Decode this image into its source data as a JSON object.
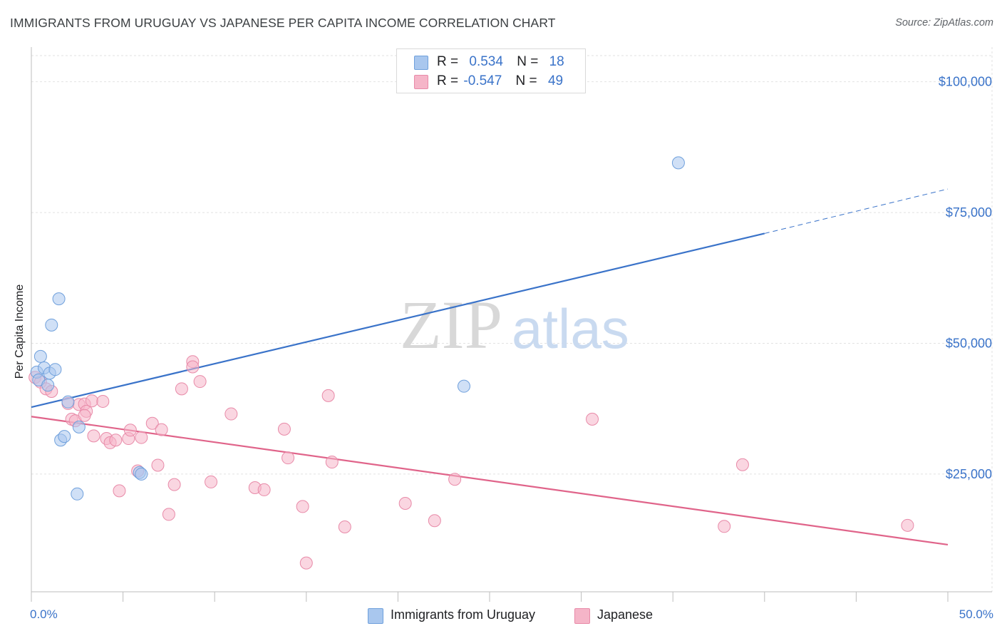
{
  "title": "IMMIGRANTS FROM URUGUAY VS JAPANESE PER CAPITA INCOME CORRELATION CHART",
  "source": "Source: ZipAtlas.com",
  "watermark": {
    "zip": "ZIP",
    "atlas": "atlas"
  },
  "legend": {
    "rows": [
      {
        "r_label": "R =",
        "r_value": "0.534",
        "n_label": "N =",
        "n_value": "18",
        "color": "#a9c7ee"
      },
      {
        "r_label": "R =",
        "r_value": "-0.547",
        "n_label": "N =",
        "n_value": "49",
        "color": "#f5b5c8"
      }
    ]
  },
  "bottom_legend": [
    {
      "label": "Immigrants from Uruguay",
      "color": "#a9c7ee"
    },
    {
      "label": "Japanese",
      "color": "#f5b5c8"
    }
  ],
  "chart_data": {
    "type": "scatter",
    "xlabel": "",
    "ylabel": "Per Capita Income",
    "xlim": [
      0,
      50
    ],
    "ylim": [
      2500,
      105000
    ],
    "x_tick_labels": [
      "0.0%",
      "50.0%"
    ],
    "y_ticks": [
      25000,
      50000,
      75000,
      100000
    ],
    "y_tick_labels": [
      "$25,000",
      "$50,000",
      "$75,000",
      "$100,000"
    ],
    "grid": true,
    "legend_position": "top-center",
    "series": [
      {
        "name": "Immigrants from Uruguay",
        "color": "#6fa0dc",
        "fill": "#a9c7ee",
        "points": [
          [
            0.3,
            44500
          ],
          [
            0.4,
            43000
          ],
          [
            0.5,
            47500
          ],
          [
            0.7,
            45300
          ],
          [
            0.9,
            42000
          ],
          [
            1.0,
            44300
          ],
          [
            1.1,
            53500
          ],
          [
            1.3,
            45000
          ],
          [
            1.5,
            58500
          ],
          [
            1.6,
            31500
          ],
          [
            1.8,
            32200
          ],
          [
            2.0,
            38800
          ],
          [
            2.6,
            34000
          ],
          [
            2.5,
            21200
          ],
          [
            5.9,
            25300
          ],
          [
            6.0,
            25000
          ],
          [
            23.6,
            41800
          ],
          [
            35.3,
            84500
          ]
        ],
        "trend": {
          "x1": 0,
          "y1": 37800,
          "x2": 40,
          "y2": 71000,
          "dash_to_x": 50,
          "dash_to_y": 79500,
          "color": "#3a73c9"
        }
      },
      {
        "name": "Japanese",
        "color": "#e88aa8",
        "fill": "#f5b5c8",
        "points": [
          [
            0.2,
            43500
          ],
          [
            0.5,
            42600
          ],
          [
            0.8,
            41300
          ],
          [
            1.1,
            40800
          ],
          [
            2.0,
            38500
          ],
          [
            2.6,
            38300
          ],
          [
            2.9,
            38400
          ],
          [
            3.0,
            37000
          ],
          [
            3.3,
            39000
          ],
          [
            3.9,
            38900
          ],
          [
            2.2,
            35500
          ],
          [
            2.4,
            35200
          ],
          [
            2.9,
            36200
          ],
          [
            3.4,
            32300
          ],
          [
            4.1,
            31800
          ],
          [
            4.3,
            31000
          ],
          [
            4.6,
            31500
          ],
          [
            5.3,
            31800
          ],
          [
            5.4,
            33400
          ],
          [
            6.0,
            32000
          ],
          [
            6.6,
            34700
          ],
          [
            7.1,
            33500
          ],
          [
            5.8,
            25600
          ],
          [
            6.9,
            26700
          ],
          [
            4.8,
            21800
          ],
          [
            7.5,
            17300
          ],
          [
            8.2,
            41300
          ],
          [
            8.8,
            46500
          ],
          [
            8.8,
            45500
          ],
          [
            9.2,
            42700
          ],
          [
            7.8,
            23000
          ],
          [
            9.8,
            23500
          ],
          [
            10.9,
            36500
          ],
          [
            12.2,
            22400
          ],
          [
            12.7,
            22000
          ],
          [
            13.8,
            33600
          ],
          [
            14.0,
            28100
          ],
          [
            14.8,
            18800
          ],
          [
            15.0,
            8000
          ],
          [
            16.2,
            40000
          ],
          [
            16.4,
            27300
          ],
          [
            17.1,
            14900
          ],
          [
            20.4,
            19400
          ],
          [
            22.0,
            16100
          ],
          [
            23.1,
            24000
          ],
          [
            30.6,
            35500
          ],
          [
            37.8,
            15000
          ],
          [
            38.8,
            26800
          ],
          [
            47.8,
            15200
          ]
        ],
        "trend": {
          "x1": 0,
          "y1": 36000,
          "x2": 50,
          "y2": 11500,
          "color": "#e0648a"
        }
      }
    ]
  }
}
